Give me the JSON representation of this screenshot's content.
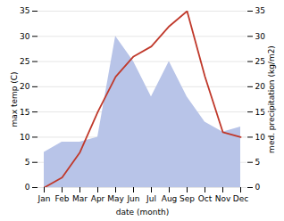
{
  "chart_data": {
    "type": "line",
    "xlabel": "date (month)",
    "ylabel": "max temp (C)",
    "y2label": "med. precipitation (kg/m2)",
    "categories": [
      "Jan",
      "Feb",
      "Mar",
      "Apr",
      "May",
      "Jun",
      "Jul",
      "Aug",
      "Sep",
      "Oct",
      "Nov",
      "Dec"
    ],
    "series": [
      {
        "type": "area",
        "color": "#b8c4e8",
        "axis": "y2",
        "values": [
          7,
          9,
          9,
          10,
          30,
          25,
          18,
          25,
          18,
          13,
          11,
          12
        ]
      },
      {
        "type": "line",
        "color": "#c0392b",
        "values": [
          0,
          2,
          7,
          15,
          22,
          26,
          28,
          32,
          35,
          22,
          11,
          10
        ]
      }
    ],
    "ylim": [
      0,
      35
    ],
    "yticks": [
      0,
      5,
      10,
      15,
      20,
      25,
      30,
      35
    ],
    "y2lim": [
      0,
      35
    ],
    "y2ticks": [
      0,
      5,
      10,
      15,
      20,
      25,
      30,
      35
    ],
    "grid": true
  }
}
